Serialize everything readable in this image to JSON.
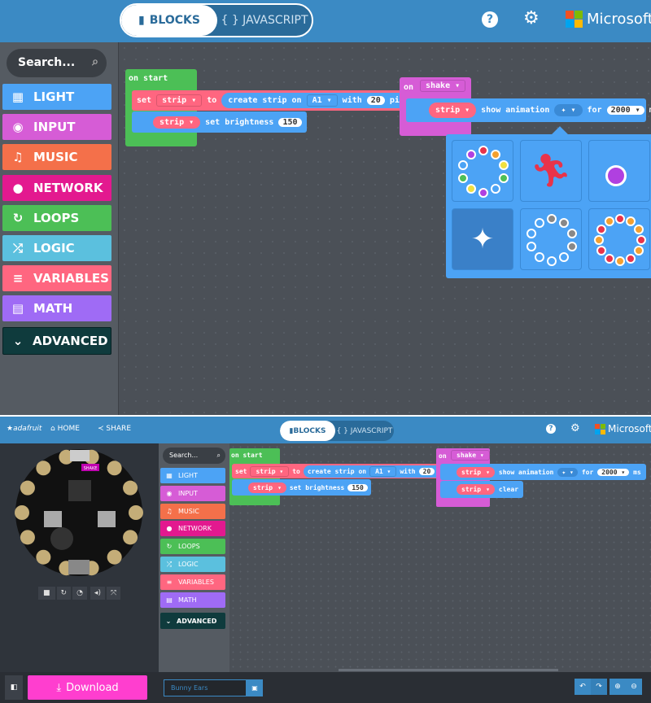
{
  "top": {
    "header": {
      "tab_blocks": "BLOCKS",
      "tab_js": "{ } JAVASCRIPT",
      "brand": "Microsoft"
    },
    "toolbox": {
      "search_placeholder": "Search...",
      "categories": [
        {
          "label": "LIGHT",
          "icon": "grid-icon",
          "color": "#4ca3f5"
        },
        {
          "label": "INPUT",
          "icon": "target-icon",
          "color": "#d65cd6"
        },
        {
          "label": "MUSIC",
          "icon": "headphones-icon",
          "color": "#f4704a"
        },
        {
          "label": "NETWORK",
          "icon": "chat-icon",
          "color": "#e3198f"
        },
        {
          "label": "LOOPS",
          "icon": "loop-icon",
          "color": "#4cbf56"
        },
        {
          "label": "LOGIC",
          "icon": "shuffle-icon",
          "color": "#5bc0de"
        },
        {
          "label": "VARIABLES",
          "icon": "list-icon",
          "color": "#ff6680"
        },
        {
          "label": "MATH",
          "icon": "calculator-icon",
          "color": "#9f6bf5"
        }
      ],
      "advanced": "ADVANCED"
    },
    "blocks": {
      "on_start": "on start",
      "set": "set",
      "var": "strip",
      "to": "to",
      "create": "create strip on",
      "pin": "A1",
      "with": "with",
      "pixels_count": "20",
      "pixels": "pixels",
      "set_brightness": "set brightness",
      "brightness": "150",
      "on": "on",
      "event": "shake",
      "show_animation": "show animation",
      "for": "for",
      "duration": "2000",
      "ms": "ms"
    },
    "animation_picker": [
      "rainbow",
      "running",
      "comet",
      "sparkle",
      "theater-chase",
      "color-wipe"
    ]
  },
  "bottom": {
    "header": {
      "logo": "adafruit",
      "home": "HOME",
      "share": "SHARE",
      "tab_blocks": "BLOCKS",
      "tab_js": "{ } JAVASCRIPT",
      "brand": "Microsoft"
    },
    "simulator": {
      "board_label": "SHAKE"
    },
    "toolbox": {
      "search_placeholder": "Search...",
      "categories": [
        "LIGHT",
        "INPUT",
        "MUSIC",
        "NETWORK",
        "LOOPS",
        "LOGIC",
        "VARIABLES",
        "MATH"
      ],
      "advanced": "ADVANCED"
    },
    "blocks": {
      "clear": "clear"
    },
    "footer": {
      "download": "Download",
      "project_name": "Bunny Ears"
    }
  }
}
